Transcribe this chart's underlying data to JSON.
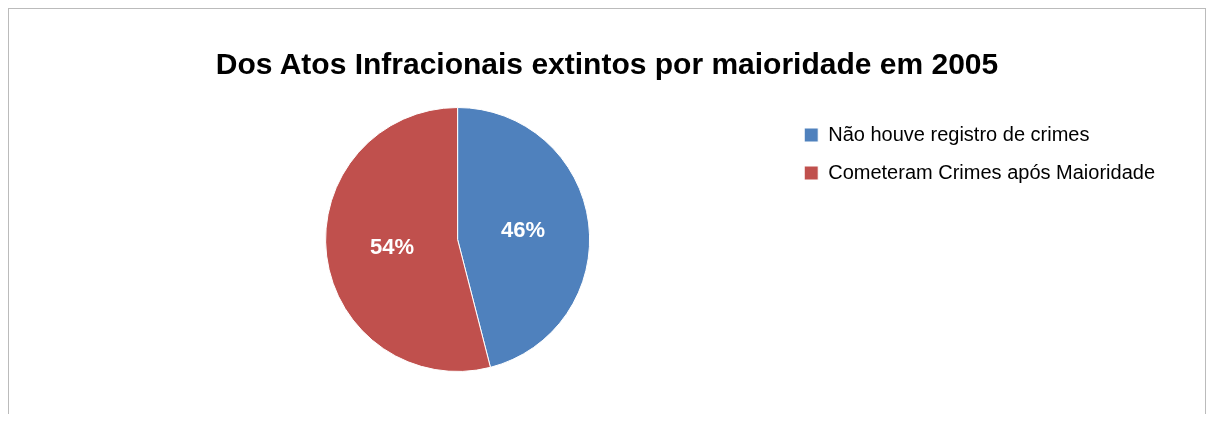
{
  "chart_data": {
    "type": "pie",
    "title": "Dos Atos Infracionais extintos por maioridade em 2005",
    "categories": [
      "Não houve registro de crimes",
      "Cometeram Crimes após Maioridade"
    ],
    "values": [
      46,
      54
    ],
    "colors": [
      "#4f81bd",
      "#c0504d"
    ],
    "value_labels": [
      "46%",
      "54%"
    ],
    "legend": "right"
  }
}
